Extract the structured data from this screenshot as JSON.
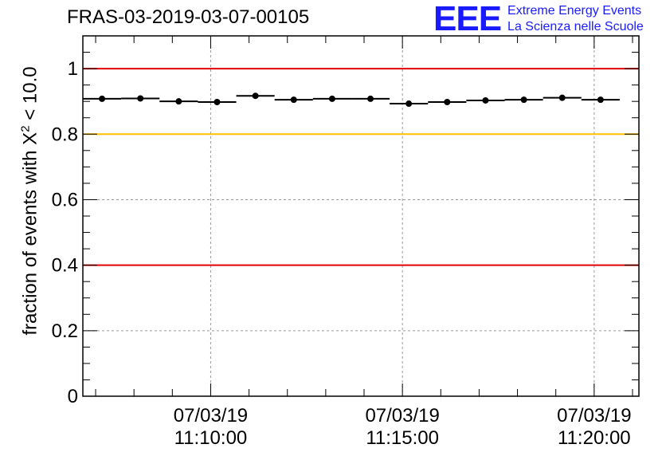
{
  "title": "FRAS-03-2019-03-07-00105",
  "logo": {
    "mark": "EEE",
    "line1": "Extreme Energy Events",
    "line2": "La Scienza nelle Scuole"
  },
  "colors": {
    "threshold_red": "#e00000",
    "threshold_yellow": "#ffc000",
    "logo_blue": "#1a1aff"
  },
  "chart_data": {
    "type": "scatter",
    "ylabel_prefix": "fraction of events with ",
    "ylabel_symbol": "X",
    "ylabel_sup": "2",
    "ylabel_suffix": " < 10.0",
    "ylim": [
      0,
      1.1
    ],
    "xlim": [
      "2019-03-07 11:06:40",
      "2019-03-07 11:21:10"
    ],
    "grid": true,
    "yticks": [
      0,
      0.2,
      0.4,
      0.6,
      0.8,
      1
    ],
    "ytick_labels": [
      "0",
      "0.2",
      "0.4",
      "0.6",
      "0.8",
      "1"
    ],
    "xticks": [
      {
        "time": "11:10:00",
        "date": "07/03/19",
        "time_label": "11:10:00"
      },
      {
        "time": "11:15:00",
        "date": "07/03/19",
        "time_label": "11:15:00"
      },
      {
        "time": "11:20:00",
        "date": "07/03/19",
        "time_label": "11:20:00"
      }
    ],
    "bin_width_seconds": 60,
    "thresholds": [
      {
        "y": 1.0,
        "color": "#e00000"
      },
      {
        "y": 0.8,
        "color": "#ffc000"
      },
      {
        "y": 0.4,
        "color": "#e00000"
      }
    ],
    "points": [
      {
        "x": "11:07:10",
        "y": 0.908
      },
      {
        "x": "11:08:10",
        "y": 0.909
      },
      {
        "x": "11:09:10",
        "y": 0.9
      },
      {
        "x": "11:10:10",
        "y": 0.898
      },
      {
        "x": "11:11:10",
        "y": 0.917
      },
      {
        "x": "11:12:10",
        "y": 0.905
      },
      {
        "x": "11:13:10",
        "y": 0.908
      },
      {
        "x": "11:14:10",
        "y": 0.908
      },
      {
        "x": "11:15:10",
        "y": 0.893
      },
      {
        "x": "11:16:10",
        "y": 0.898
      },
      {
        "x": "11:17:10",
        "y": 0.903
      },
      {
        "x": "11:18:10",
        "y": 0.905
      },
      {
        "x": "11:19:10",
        "y": 0.911
      },
      {
        "x": "11:20:10",
        "y": 0.905
      }
    ]
  }
}
